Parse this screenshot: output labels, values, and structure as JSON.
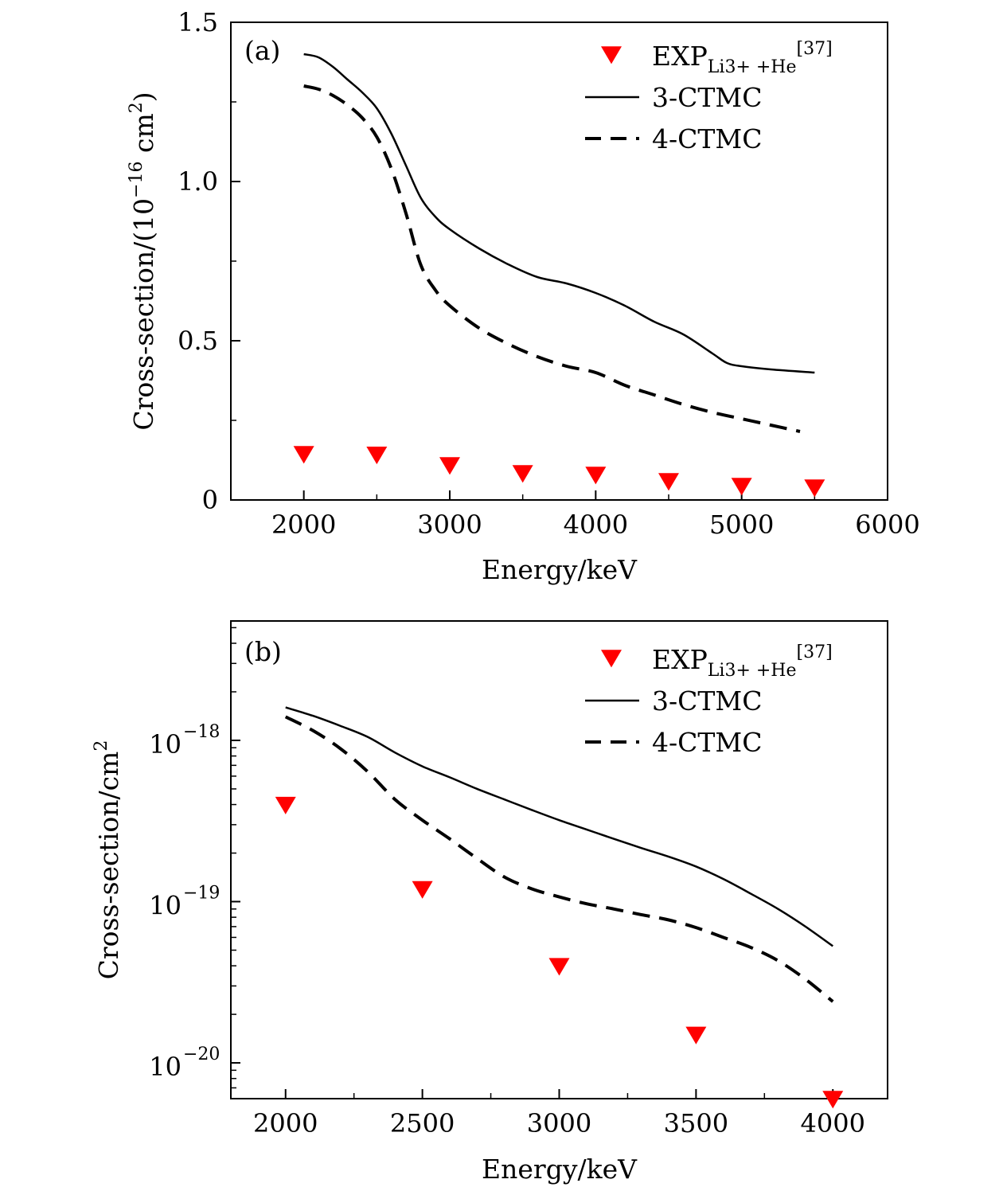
{
  "chart_data": [
    {
      "type": "line",
      "panel_label": "(a)",
      "xlabel": "Energy/keV",
      "ylabel": "Cross-section/(10",
      "ylabel_exp": "−16",
      "ylabel_unit": " cm",
      "ylabel_unit_exp": "2",
      "ylabel_close": ")",
      "xlim": [
        1500,
        6000
      ],
      "ylim": [
        0,
        1.5
      ],
      "yscale": "linear",
      "xticks": [
        2000,
        3000,
        4000,
        5000,
        6000
      ],
      "xtick_labels": [
        "2000",
        "3000",
        "4000",
        "5000",
        "6000"
      ],
      "yticks": [
        0,
        0.5,
        1.0,
        1.5
      ],
      "ytick_labels": [
        "0",
        "0.5",
        "1.0",
        "1.5"
      ],
      "legend_position": "top-right",
      "series": [
        {
          "name": "EXP",
          "name_sub": "Li3+ +He",
          "name_sup": "[37]",
          "style": "marker-triangle-down",
          "color": "#ff0000",
          "x": [
            2000,
            2500,
            3000,
            3500,
            4000,
            4500,
            5000,
            5500
          ],
          "y": [
            0.145,
            0.143,
            0.11,
            0.085,
            0.08,
            0.06,
            0.045,
            0.04
          ]
        },
        {
          "name": "3-CTMC",
          "style": "solid",
          "color": "#000000",
          "x": [
            2000,
            2100,
            2200,
            2300,
            2400,
            2500,
            2600,
            2700,
            2800,
            2900,
            3000,
            3200,
            3400,
            3600,
            3800,
            4000,
            4200,
            4400,
            4600,
            4800,
            4900,
            5000,
            5200,
            5500
          ],
          "y": [
            1.4,
            1.39,
            1.36,
            1.32,
            1.28,
            1.23,
            1.15,
            1.05,
            0.95,
            0.89,
            0.85,
            0.79,
            0.74,
            0.7,
            0.68,
            0.65,
            0.61,
            0.56,
            0.52,
            0.46,
            0.43,
            0.42,
            0.41,
            0.4
          ]
        },
        {
          "name": "4-CTMC",
          "style": "dashed",
          "color": "#000000",
          "x": [
            2000,
            2100,
            2200,
            2300,
            2400,
            2500,
            2600,
            2700,
            2800,
            2900,
            3000,
            3200,
            3400,
            3600,
            3800,
            4000,
            4200,
            4400,
            4600,
            4800,
            5000,
            5200,
            5400
          ],
          "y": [
            1.3,
            1.29,
            1.27,
            1.24,
            1.2,
            1.14,
            1.04,
            0.9,
            0.74,
            0.66,
            0.61,
            0.54,
            0.49,
            0.45,
            0.42,
            0.4,
            0.36,
            0.33,
            0.3,
            0.275,
            0.255,
            0.235,
            0.215
          ]
        }
      ]
    },
    {
      "type": "line",
      "panel_label": "(b)",
      "xlabel": "Energy/keV",
      "ylabel": "Cross-section/cm",
      "ylabel_exp": "2",
      "xlim": [
        1800,
        4200
      ],
      "ylim": [
        6e-21,
        5.5e-18
      ],
      "yscale": "log",
      "xticks": [
        2000,
        2500,
        3000,
        3500,
        4000
      ],
      "xtick_labels": [
        "2000",
        "2500",
        "3000",
        "3500",
        "4000"
      ],
      "yticks": [
        1e-20,
        1e-19,
        1e-18
      ],
      "ytick_base": "10",
      "ytick_exps": [
        "−20",
        "−19",
        "−18"
      ],
      "legend_position": "top-right",
      "series": [
        {
          "name": "EXP",
          "name_sub": "Li3+ +He",
          "name_sup": "[37]",
          "style": "marker-triangle-down",
          "color": "#ff0000",
          "x": [
            2000,
            2500,
            3000,
            3500,
            4000
          ],
          "y": [
            4e-19,
            1.2e-19,
            4e-20,
            1.5e-20,
            6e-21
          ]
        },
        {
          "name": "3-CTMC",
          "style": "solid",
          "color": "#000000",
          "x": [
            2000,
            2100,
            2200,
            2300,
            2400,
            2500,
            2600,
            2700,
            2800,
            2900,
            3000,
            3100,
            3200,
            3300,
            3400,
            3500,
            3600,
            3700,
            3800,
            3900,
            4000
          ],
          "y": [
            1.6e-18,
            1.42e-18,
            1.23e-18,
            1.05e-18,
            8.4e-19,
            6.9e-19,
            5.9e-19,
            5e-19,
            4.3e-19,
            3.7e-19,
            3.2e-19,
            2.8e-19,
            2.45e-19,
            2.15e-19,
            1.9e-19,
            1.65e-19,
            1.38e-19,
            1.12e-19,
            9e-20,
            7e-20,
            5.3e-20
          ]
        },
        {
          "name": "4-CTMC",
          "style": "dashed",
          "color": "#000000",
          "x": [
            2000,
            2100,
            2200,
            2300,
            2400,
            2500,
            2600,
            2700,
            2800,
            2900,
            3000,
            3100,
            3200,
            3300,
            3400,
            3500,
            3600,
            3700,
            3800,
            3900,
            4000
          ],
          "y": [
            1.4e-18,
            1.15e-18,
            8.9e-19,
            6.4e-19,
            4.3e-19,
            3.2e-19,
            2.45e-19,
            1.85e-19,
            1.42e-19,
            1.2e-19,
            1.07e-19,
            9.7e-20,
            9e-20,
            8.3e-20,
            7.7e-20,
            6.9e-20,
            6e-20,
            5.2e-20,
            4.3e-20,
            3.3e-20,
            2.4e-20
          ]
        }
      ]
    }
  ]
}
